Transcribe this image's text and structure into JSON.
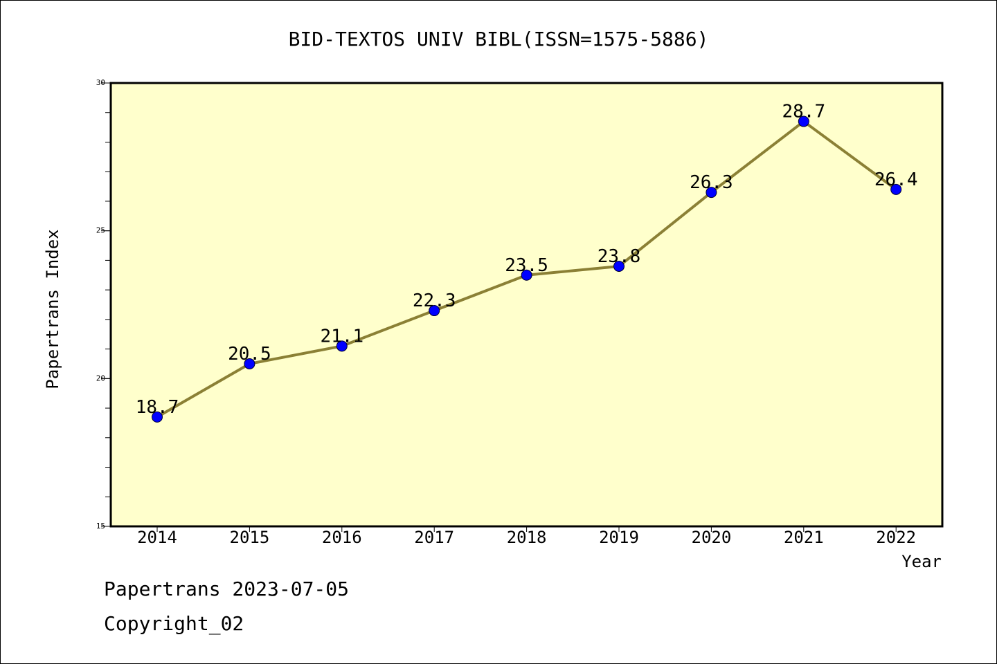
{
  "chart_data": {
    "type": "line",
    "title": "BID-TEXTOS UNIV BIBL(ISSN=1575-5886)",
    "xlabel": "Year",
    "ylabel": "Papertrans Index",
    "x": [
      "2014",
      "2015",
      "2016",
      "2017",
      "2018",
      "2019",
      "2020",
      "2021",
      "2022"
    ],
    "series": [
      {
        "values": [
          18.7,
          20.5,
          21.1,
          22.3,
          23.5,
          23.8,
          26.3,
          28.7,
          26.4
        ],
        "data_labels": [
          "18.7",
          "20.5",
          "21.1",
          "22.3",
          "23.5",
          "23.8",
          "26.3",
          "28.7",
          "26.4"
        ]
      }
    ],
    "ylim": [
      15,
      30
    ],
    "yticks": [
      "15",
      "20",
      "25",
      "30"
    ],
    "grid": false,
    "colors": {
      "plot_background": "#ffffcc",
      "line": "#8b8035",
      "marker": "#0000ff"
    }
  },
  "footer": {
    "source": "Papertrans 2023-07-05",
    "copyright": "Copyright_02"
  }
}
